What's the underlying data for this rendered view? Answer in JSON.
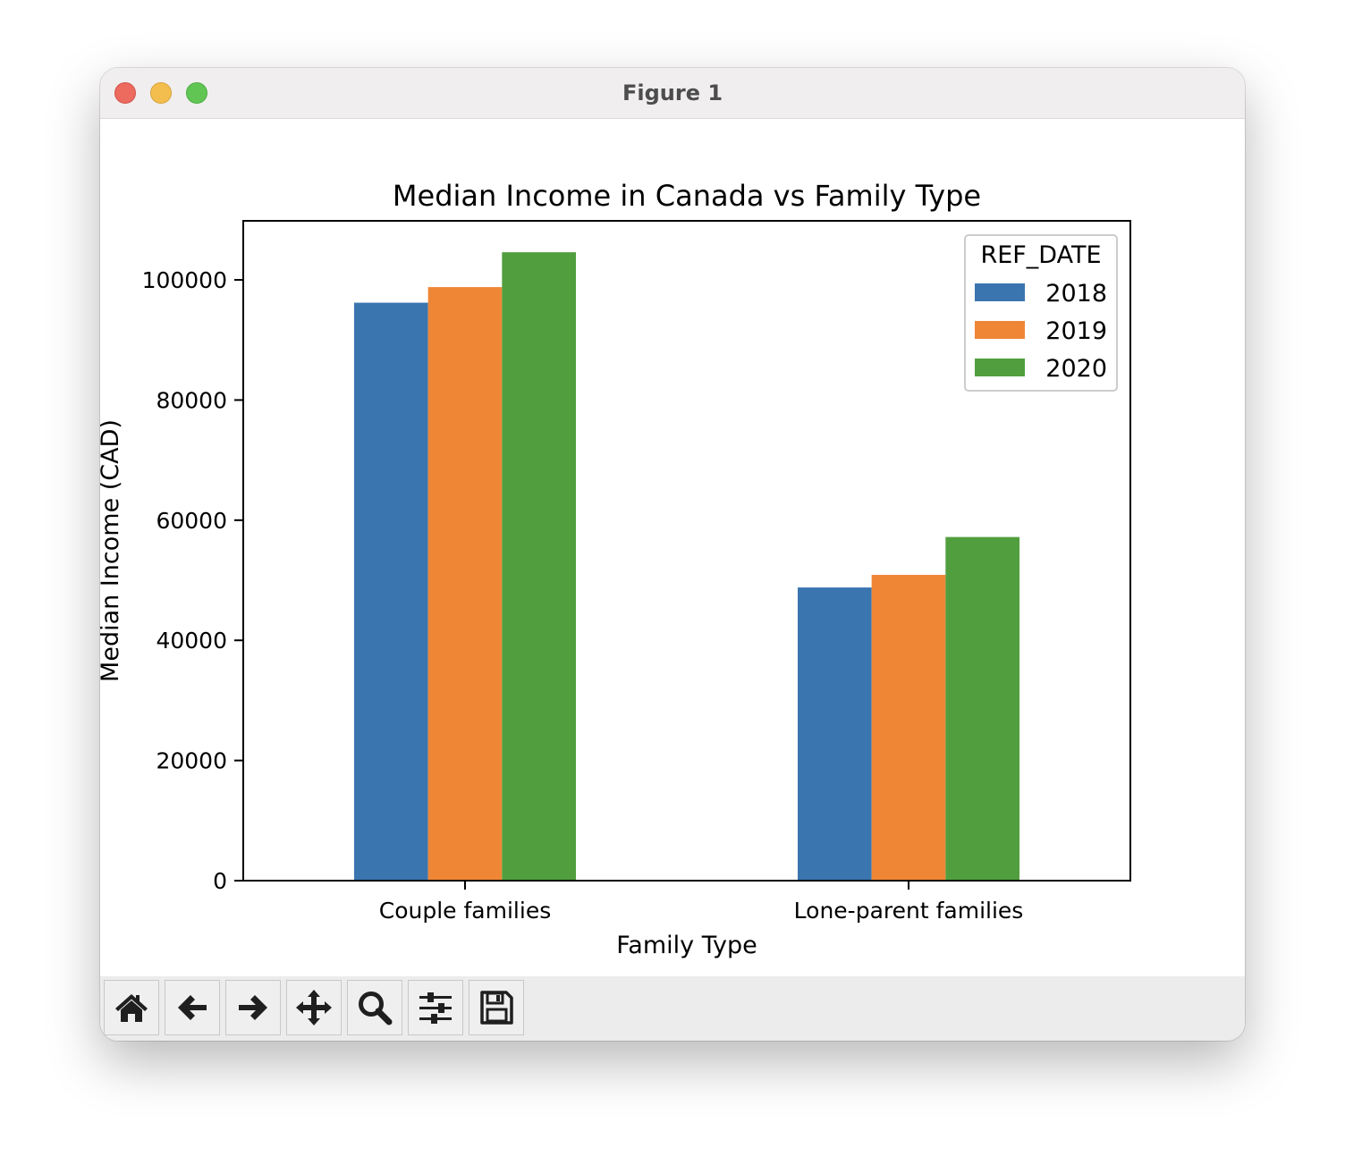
{
  "window": {
    "title": "Figure 1"
  },
  "toolbar": {
    "buttons": [
      {
        "name": "home",
        "icon": "home-icon"
      },
      {
        "name": "back",
        "icon": "arrow-left-icon"
      },
      {
        "name": "forward",
        "icon": "arrow-right-icon"
      },
      {
        "name": "pan",
        "icon": "move-icon"
      },
      {
        "name": "zoom",
        "icon": "magnifier-icon"
      },
      {
        "name": "configure-subplots",
        "icon": "sliders-icon"
      },
      {
        "name": "save",
        "icon": "floppy-disk-icon"
      }
    ]
  },
  "chart_data": {
    "type": "bar",
    "title": "Median Income in Canada vs Family Type",
    "xlabel": "Family Type",
    "ylabel": "Median Income (CAD)",
    "categories": [
      "Couple families",
      "Lone-parent families"
    ],
    "series": [
      {
        "name": "2018",
        "color": "#3a75af",
        "values": [
          96200,
          48800
        ]
      },
      {
        "name": "2019",
        "color": "#ef8636",
        "values": [
          98800,
          50900
        ]
      },
      {
        "name": "2020",
        "color": "#519e3e",
        "values": [
          104600,
          57200
        ]
      }
    ],
    "ylim": [
      0,
      109830
    ],
    "yticks": [
      0,
      20000,
      40000,
      60000,
      80000,
      100000
    ],
    "ytick_labels": [
      "0",
      "20000",
      "40000",
      "60000",
      "80000",
      "100000"
    ],
    "legend": {
      "title": "REF_DATE",
      "position": "top-right"
    },
    "grid": false
  }
}
